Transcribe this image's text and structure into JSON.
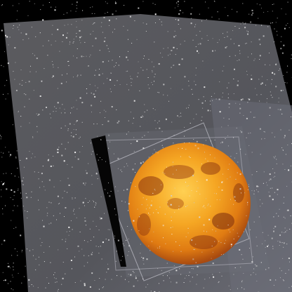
{
  "scene": {
    "description_hidden": "",
    "colors": {
      "space": "#000000",
      "panel": "#5a5a5e",
      "panel_edge": "#6d6e74",
      "planet_core": "#f5a623",
      "planet_mid": "#e07b12",
      "planet_dark": "#8a3410",
      "panel_frame": "#b8b8c0",
      "slit": "#050505"
    },
    "elements": [
      "starfield",
      "gray-panel",
      "tilted-frame",
      "dark-slit",
      "planet-icon"
    ]
  }
}
